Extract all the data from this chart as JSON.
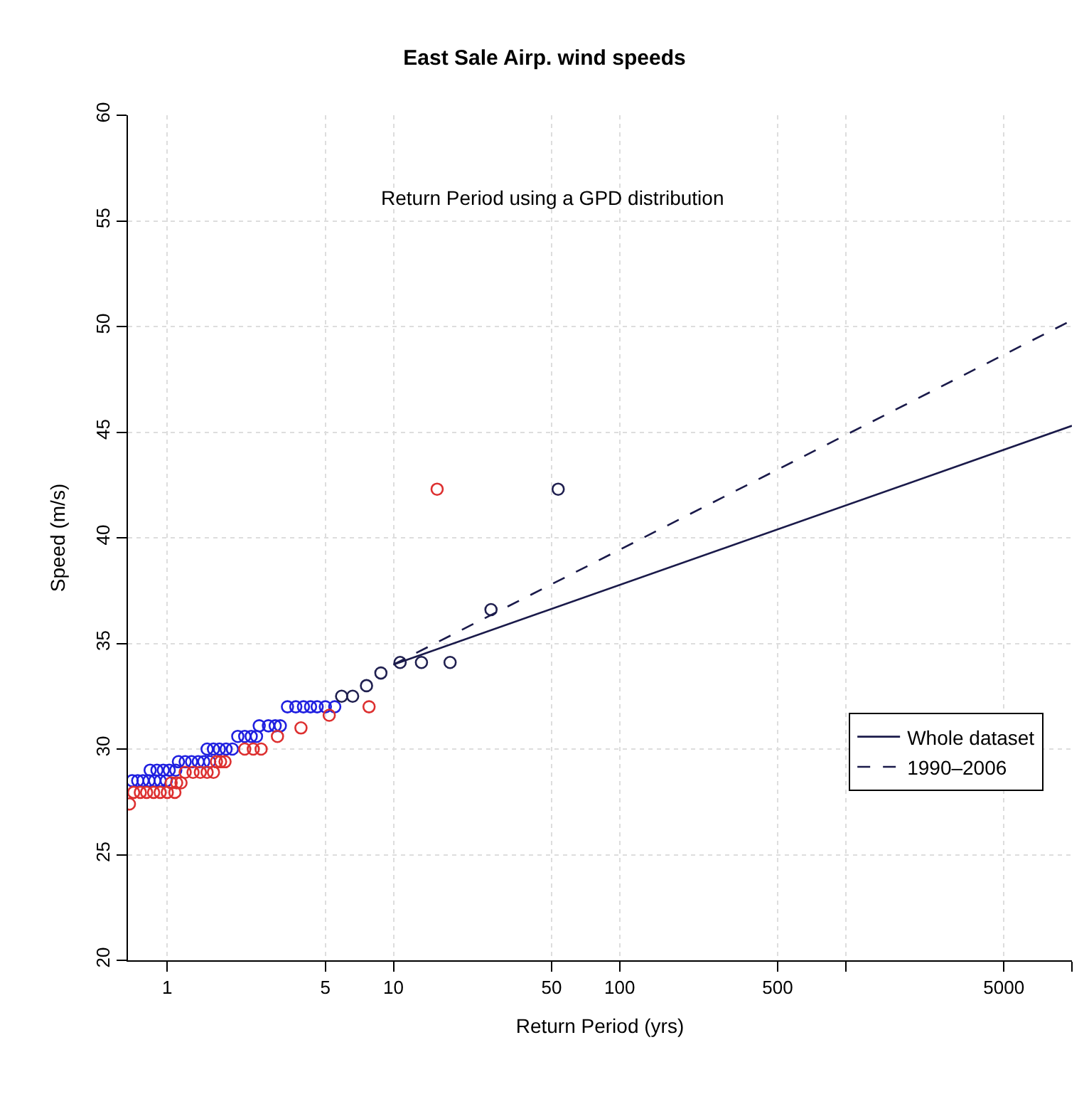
{
  "chart_data": {
    "type": "scatter",
    "title": "East Sale Airp. wind speeds",
    "xlabel": "Return Period (yrs)",
    "ylabel": "Speed (m/s)",
    "annotations": [
      "Return Period using a GPD distribution"
    ],
    "log": "x",
    "xlim": [
      0.67,
      10000
    ],
    "ylim": [
      20,
      60
    ],
    "xticks": [
      1,
      5,
      10,
      50,
      100,
      500,
      {
        "value": 1000,
        "label": null
      },
      5000,
      {
        "value": 10000,
        "label": null
      }
    ],
    "yticks": [
      20,
      25,
      30,
      35,
      40,
      45,
      50,
      55,
      60
    ],
    "grid": true,
    "legend": "bottom right",
    "series": [
      {
        "marker": "circle",
        "color": "#2020e0",
        "x": [
          0.7,
          0.74,
          0.78,
          0.83,
          0.88,
          0.93,
          0.99,
          0.84,
          0.9,
          0.96,
          1.02,
          1.09,
          1.12,
          1.2,
          1.28,
          1.37,
          1.45,
          1.54,
          1.5,
          1.6,
          1.7,
          1.82,
          1.94,
          2.05,
          2.2,
          2.35,
          2.48,
          2.55,
          2.8,
          3.0,
          3.16,
          3.4,
          3.7,
          4.0,
          4.3,
          4.6,
          5.0,
          5.5
        ],
        "values": [
          28.5,
          28.5,
          28.5,
          28.5,
          28.5,
          28.5,
          28.5,
          29.0,
          29.0,
          29.0,
          29.0,
          29.0,
          29.4,
          29.4,
          29.4,
          29.4,
          29.4,
          29.4,
          30.0,
          30.0,
          30.0,
          30.0,
          30.0,
          30.6,
          30.6,
          30.6,
          30.6,
          31.1,
          31.1,
          31.1,
          31.1,
          32.0,
          32.0,
          32.0,
          32.0,
          32.0,
          32.0,
          32.0
        ]
      },
      {
        "marker": "circle",
        "color": "#202050",
        "x": [
          5.9,
          6.6,
          7.6,
          8.8,
          10.7,
          13.3,
          17.8,
          27,
          53.5
        ],
        "values": [
          32.5,
          32.5,
          33.0,
          33.6,
          34.1,
          34.1,
          34.1,
          36.6,
          42.3
        ]
      },
      {
        "marker": "circle",
        "color": "#dd3030",
        "x": [
          0.68,
          0.71,
          0.76,
          0.81,
          0.87,
          0.93,
          1.0,
          1.08,
          1.04,
          1.1,
          1.15,
          1.2,
          1.3,
          1.4,
          1.5,
          1.6,
          1.65,
          1.72,
          1.8,
          2.2,
          2.4,
          2.6,
          3.07,
          3.9,
          5.2,
          7.8,
          15.6
        ],
        "values": [
          27.4,
          27.95,
          27.95,
          27.95,
          27.95,
          27.95,
          27.95,
          27.95,
          28.4,
          28.4,
          28.4,
          28.9,
          28.9,
          28.9,
          28.9,
          28.9,
          29.4,
          29.4,
          29.4,
          30.0,
          30.0,
          30.0,
          30.6,
          31.0,
          31.6,
          32.0,
          42.3
        ]
      },
      {
        "type": "line",
        "name": "Whole dataset",
        "marker": "none",
        "line_style": "solid",
        "color": "#1a1a4a",
        "x": [
          10,
          10000
        ],
        "values": [
          34.0,
          45.3
        ]
      },
      {
        "type": "line",
        "name": "1990–2006",
        "marker": "none",
        "line_style": "dashed",
        "color": "#1a1a4a",
        "x": [
          10,
          10000
        ],
        "values": [
          34.0,
          50.3
        ]
      }
    ]
  }
}
